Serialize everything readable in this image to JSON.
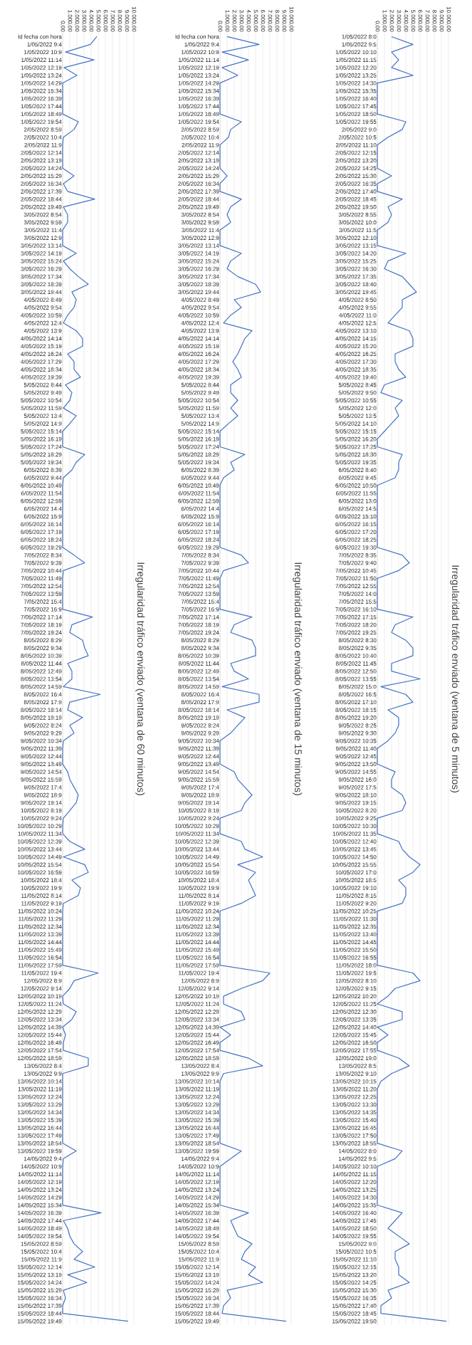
{
  "chart_data": [
    {
      "type": "line",
      "orientation": "horizontal",
      "title": "Irregularidad tráfico enviado (ventana de 60 minutos)",
      "color": "#4472c4",
      "grid": "x",
      "marker": "none",
      "xlim": [
        0,
        10000
      ],
      "xticks": [
        {
          "value": 0,
          "label": "0,00"
        },
        {
          "value": 1000,
          "label": "1.000,00"
        },
        {
          "value": 2000,
          "label": "2.000,00"
        },
        {
          "value": 3000,
          "label": "3.000,00"
        },
        {
          "value": 4000,
          "label": "4.000,00"
        },
        {
          "value": 5000,
          "label": "5.000,00"
        },
        {
          "value": 6000,
          "label": "6.000,00"
        },
        {
          "value": 7000,
          "label": "7.000,00"
        },
        {
          "value": 8000,
          "label": "8.000,00"
        },
        {
          "value": 9000,
          "label": "9.000,00"
        },
        {
          "value": 10000,
          "label": "10.000,00"
        }
      ],
      "categories": [
        "Id fecha con hora",
        "1/05/2022 9:4",
        "1/05/2022 10:9",
        "1/05/2022 11:14",
        "1/05/2022 12:19",
        "1/05/2022 13:24",
        "1/05/2022 14:29",
        "1/05/2022 15:34",
        "1/05/2022 16:39",
        "1/05/2022 17:44",
        "1/05/2022 18:49",
        "1/05/2022 19:54",
        "2/05/2022 8:59",
        "2/05/2022 10:4",
        "2/05/2022 11:9",
        "2/05/2022 12:14",
        "2/05/2022 13:19",
        "2/05/2022 14:24",
        "2/05/2022 15:29",
        "2/05/2022 16:34",
        "2/05/2022 17:39",
        "2/05/2022 18:44",
        "2/05/2022 19:49",
        "3/05/2022 8:54",
        "3/05/2022 9:59",
        "3/05/2022 11:4",
        "3/05/2022 12:9",
        "3/05/2022 13:14",
        "3/05/2022 14:19",
        "3/05/2022 15:24",
        "3/05/2022 16:29",
        "3/05/2022 17:34",
        "3/05/2022 18:39",
        "3/05/2022 19:44",
        "4/05/2022 8:49",
        "4/05/2022 9:54",
        "4/05/2022 10:59",
        "4/05/2022 12:4",
        "4/05/2022 13:9",
        "4/05/2022 14:14",
        "4/05/2022 15:19",
        "4/05/2022 16:24",
        "4/05/2022 17:29",
        "4/05/2022 18:34",
        "4/05/2022 19:39",
        "5/05/2022 8:44",
        "5/05/2022 9:49",
        "5/05/2022 10:54",
        "5/05/2022 11:59",
        "5/05/2022 13:4",
        "5/05/2022 14:9",
        "5/05/2022 15:14",
        "5/05/2022 16:19",
        "5/05/2022 17:24",
        "5/05/2022 18:29",
        "5/05/2022 19:34",
        "6/05/2022 8:39",
        "6/05/2022 9:44",
        "6/05/2022 10:49",
        "6/05/2022 11:54",
        "6/05/2022 12:59",
        "6/05/2022 14:4",
        "6/05/2022 15:9",
        "6/05/2022 16:14",
        "6/05/2022 17:19",
        "6/05/2022 18:24",
        "6/05/2022 19:29",
        "7/05/2022 8:34",
        "7/05/2022 9:39",
        "7/05/2022 10:44",
        "7/05/2022 11:49",
        "7/05/2022 12:54",
        "7/05/2022 13:59",
        "7/05/2022 15:4",
        "7/05/2022 16:9",
        "7/05/2022 17:14",
        "7/05/2022 18:19",
        "7/05/2022 19:24",
        "8/05/2022 8:29",
        "8/05/2022 9:34",
        "8/05/2022 10:39",
        "8/05/2022 11:44",
        "8/05/2022 12:49",
        "8/05/2022 13:54",
        "8/05/2022 14:59",
        "8/05/2022 16:4",
        "8/05/2022 17:9",
        "8/05/2022 18:14",
        "8/05/2022 19:19",
        "9/05/2022 8:24",
        "9/05/2022 9:29",
        "9/05/2022 10:34",
        "9/05/2022 11:39",
        "9/05/2022 12:44",
        "9/05/2022 13:49",
        "9/05/2022 14:54",
        "9/05/2022 15:59",
        "9/05/2022 17:4",
        "9/05/2022 18:9",
        "9/05/2022 19:14",
        "10/05/2022 8:19",
        "10/05/2022 9:24",
        "10/05/2022 10:29",
        "10/05/2022 11:34",
        "10/05/2022 12:39",
        "10/05/2022 13:44",
        "10/05/2022 14:49",
        "10/05/2022 15:54",
        "10/05/2022 16:59",
        "10/05/2022 18:4",
        "10/05/2022 19:9",
        "11/05/2022 8:14",
        "11/05/2022 9:19",
        "11/05/2022 10:24",
        "11/05/2022 11:29",
        "11/05/2022 12:34",
        "11/05/2022 13:39",
        "11/05/2022 14:44",
        "11/05/2022 15:49",
        "11/05/2022 16:54",
        "11/05/2022 17:59",
        "11/05/2022 19:4",
        "12/05/2022 8:9",
        "12/05/2022 9:14",
        "12/05/2022 10:19",
        "12/05/2022 11:24",
        "12/05/2022 12:29",
        "12/05/2022 13:34",
        "12/05/2022 14:39",
        "12/05/2022 15:44",
        "12/05/2022 16:49",
        "12/05/2022 17:54",
        "12/05/2022 18:59",
        "13/05/2022 8:4",
        "13/05/2022 9:9",
        "13/05/2022 10:14",
        "13/05/2022 11:19",
        "13/05/2022 12:24",
        "13/05/2022 13:29",
        "13/05/2022 14:34",
        "13/05/2022 15:39",
        "13/05/2022 16:44",
        "13/05/2022 17:49",
        "13/05/2022 18:54",
        "13/05/2022 19:59",
        "14/05/2022 9:4",
        "14/05/2022 10:9",
        "14/05/2022 11:14",
        "14/05/2022 12:19",
        "14/05/2022 13:24",
        "14/05/2022 14:29",
        "14/05/2022 15:34",
        "14/05/2022 16:39",
        "14/05/2022 17:44",
        "14/05/2022 18:49",
        "14/05/2022 19:54",
        "15/05/2022 8:59",
        "15/05/2022 10:4",
        "15/05/2022 11:9",
        "15/05/2022 12:14",
        "15/05/2022 13:19",
        "15/05/2022 14:24",
        "15/05/2022 15:29",
        "15/05/2022 16:34",
        "15/05/2022 17:39",
        "15/05/2022 18:44",
        "15/05/2022 19:49"
      ],
      "values": [
        4800,
        3900,
        400,
        4400,
        200,
        2000,
        0,
        0,
        0,
        0,
        0,
        2200,
        1600,
        100,
        0,
        0,
        0,
        0,
        1600,
        100,
        700,
        4500,
        100,
        700,
        700,
        0,
        0,
        0,
        1900,
        100,
        1000,
        2200,
        3600,
        1300,
        1900,
        1600,
        700,
        100,
        1900,
        2800,
        2800,
        700,
        1600,
        1600,
        2500,
        400,
        1300,
        1000,
        100,
        1900,
        1000,
        0,
        0,
        0,
        3100,
        1900,
        1300,
        100,
        0,
        0,
        0,
        0,
        0,
        0,
        0,
        0,
        0,
        1600,
        3100,
        100,
        0,
        0,
        0,
        0,
        0,
        4200,
        1300,
        1000,
        2800,
        3100,
        3600,
        700,
        1300,
        1300,
        100,
        5300,
        1000,
        700,
        2800,
        1000,
        1600,
        100,
        0,
        0,
        0,
        700,
        1000,
        1600,
        2200,
        1900,
        1000,
        100,
        0,
        0,
        1000,
        3100,
        100,
        3100,
        3600,
        1300,
        2500,
        2200,
        100,
        0,
        0,
        0,
        0,
        0,
        0,
        0,
        0,
        5000,
        1600,
        1000,
        0,
        100,
        1900,
        1300,
        0,
        400,
        100,
        100,
        3600,
        3600,
        0,
        0,
        0,
        0,
        0,
        0,
        0,
        0,
        0,
        0,
        1900,
        100,
        0,
        0,
        0,
        0,
        0,
        0,
        5400,
        100,
        700,
        1000,
        1600,
        2800,
        1600,
        4500,
        700,
        3400,
        100,
        400,
        0,
        0,
        9200
      ]
    },
    {
      "type": "line",
      "orientation": "horizontal",
      "title": "Irregularidad tráfico enviado (ventana de 15 minutos)",
      "color": "#4472c4",
      "grid": "x",
      "marker": "none",
      "xlim": [
        0,
        10000
      ],
      "xticks": [
        {
          "value": 0,
          "label": "0,00"
        },
        {
          "value": 1000,
          "label": "1.000,00"
        },
        {
          "value": 2000,
          "label": "2.000,00"
        },
        {
          "value": 3000,
          "label": "3.000,00"
        },
        {
          "value": 4000,
          "label": "4.000,00"
        },
        {
          "value": 5000,
          "label": "5.000,00"
        },
        {
          "value": 6000,
          "label": "6.000,00"
        },
        {
          "value": 7000,
          "label": "7.000,00"
        },
        {
          "value": 8000,
          "label": "8.000,00"
        },
        {
          "value": 9000,
          "label": "9.000,00"
        },
        {
          "value": 10000,
          "label": "10.000,00"
        }
      ],
      "categories": [
        "Id fecha con hora",
        "1/05/2022 9:4",
        "1/05/2022 10:9",
        "1/05/2022 11:14",
        "1/05/2022 12:19",
        "1/05/2022 13:24",
        "1/05/2022 14:29",
        "1/05/2022 15:34",
        "1/05/2022 16:39",
        "1/05/2022 17:44",
        "1/05/2022 18:49",
        "1/05/2022 19:54",
        "2/05/2022 8:59",
        "2/05/2022 10:4",
        "2/05/2022 11:9",
        "2/05/2022 12:14",
        "2/05/2022 13:19",
        "2/05/2022 14:24",
        "2/05/2022 15:29",
        "2/05/2022 16:34",
        "2/05/2022 17:39",
        "2/05/2022 18:44",
        "2/05/2022 19:49",
        "3/05/2022 8:54",
        "3/05/2022 9:59",
        "3/05/2022 11:4",
        "3/05/2022 12:9",
        "3/05/2022 13:14",
        "3/05/2022 14:19",
        "3/05/2022 15:24",
        "3/05/2022 16:29",
        "3/05/2022 17:34",
        "3/05/2022 18:39",
        "3/05/2022 19:44",
        "4/05/2022 8:49",
        "4/05/2022 9:54",
        "4/05/2022 10:59",
        "4/05/2022 12:4",
        "4/05/2022 13:9",
        "4/05/2022 14:14",
        "4/05/2022 15:19",
        "4/05/2022 16:24",
        "4/05/2022 17:29",
        "4/05/2022 18:34",
        "4/05/2022 19:39",
        "5/05/2022 8:44",
        "5/05/2022 9:49",
        "5/05/2022 10:54",
        "5/05/2022 11:59",
        "5/05/2022 13:4",
        "5/05/2022 14:9",
        "5/05/2022 15:14",
        "5/05/2022 16:19",
        "5/05/2022 17:24",
        "5/05/2022 18:29",
        "5/05/2022 19:34",
        "6/05/2022 8:39",
        "6/05/2022 9:44",
        "6/05/2022 10:49",
        "6/05/2022 11:54",
        "6/05/2022 12:59",
        "6/05/2022 14:4",
        "6/05/2022 15:9",
        "6/05/2022 16:14",
        "6/05/2022 17:19",
        "6/05/2022 18:24",
        "6/05/2022 19:29",
        "7/05/2022 8:34",
        "7/05/2022 9:39",
        "7/05/2022 10:44",
        "7/05/2022 11:49",
        "7/05/2022 12:54",
        "7/05/2022 13:59",
        "7/05/2022 15:4",
        "7/05/2022 16:9",
        "7/05/2022 17:14",
        "7/05/2022 18:19",
        "7/05/2022 19:24",
        "8/05/2022 8:29",
        "8/05/2022 9:34",
        "8/05/2022 10:39",
        "8/05/2022 11:44",
        "8/05/2022 12:49",
        "8/05/2022 13:54",
        "8/05/2022 14:59",
        "8/05/2022 16:4",
        "8/05/2022 17:9",
        "8/05/2022 18:14",
        "8/05/2022 19:19",
        "9/05/2022 8:24",
        "9/05/2022 9:29",
        "9/05/2022 10:34",
        "9/05/2022 11:39",
        "9/05/2022 12:44",
        "9/05/2022 13:49",
        "9/05/2022 14:54",
        "9/05/2022 15:59",
        "9/05/2022 17:4",
        "9/05/2022 18:9",
        "9/05/2022 19:14",
        "10/05/2022 8:19",
        "10/05/2022 9:24",
        "10/05/2022 10:29",
        "10/05/2022 11:34",
        "10/05/2022 12:39",
        "10/05/2022 13:44",
        "10/05/2022 14:49",
        "10/05/2022 15:54",
        "10/05/2022 16:59",
        "10/05/2022 18:4",
        "10/05/2022 19:9",
        "11/05/2022 8:14",
        "11/05/2022 9:19",
        "11/05/2022 10:24",
        "11/05/2022 11:29",
        "11/05/2022 12:34",
        "11/05/2022 13:39",
        "11/05/2022 14:44",
        "11/05/2022 15:49",
        "11/05/2022 16:54",
        "11/05/2022 17:59",
        "11/05/2022 19:4",
        "12/05/2022 8:9",
        "12/05/2022 9:14",
        "12/05/2022 10:19",
        "12/05/2022 11:24",
        "12/05/2022 12:29",
        "12/05/2022 13:34",
        "12/05/2022 14:39",
        "12/05/2022 15:44",
        "12/05/2022 16:49",
        "12/05/2022 17:54",
        "12/05/2022 18:59",
        "13/05/2022 8:4",
        "13/05/2022 9:9",
        "13/05/2022 10:14",
        "13/05/2022 11:19",
        "13/05/2022 12:24",
        "13/05/2022 13:29",
        "13/05/2022 14:34",
        "13/05/2022 15:39",
        "13/05/2022 16:44",
        "13/05/2022 17:49",
        "13/05/2022 18:54",
        "13/05/2022 19:59",
        "14/05/2022 9:4",
        "14/05/2022 10:9",
        "14/05/2022 11:14",
        "14/05/2022 12:19",
        "14/05/2022 13:24",
        "14/05/2022 14:29",
        "14/05/2022 15:34",
        "14/05/2022 16:39",
        "14/05/2022 17:44",
        "14/05/2022 18:49",
        "14/05/2022 19:54",
        "15/05/2022 8:59",
        "15/05/2022 10:4",
        "15/05/2022 11:9",
        "15/05/2022 12:14",
        "15/05/2022 13:19",
        "15/05/2022 14:24",
        "15/05/2022 15:29",
        "15/05/2022 16:34",
        "15/05/2022 17:39",
        "15/05/2022 18:44",
        "15/05/2022 19:49"
      ],
      "values": [
        1000,
        5500,
        300,
        4000,
        300,
        2500,
        0,
        0,
        0,
        0,
        0,
        3000,
        1500,
        1200,
        0,
        0,
        0,
        0,
        1000,
        0,
        0,
        3000,
        1500,
        1000,
        1500,
        0,
        0,
        0,
        3000,
        1500,
        1000,
        2500,
        5000,
        5700,
        2000,
        3000,
        1500,
        500,
        4500,
        3500,
        3000,
        2500,
        1800,
        2500,
        3000,
        1500,
        1500,
        2500,
        1500,
        2500,
        1200,
        0,
        0,
        0,
        3500,
        1500,
        2000,
        500,
        0,
        0,
        0,
        0,
        0,
        0,
        0,
        0,
        0,
        3000,
        4000,
        500,
        0,
        0,
        0,
        0,
        0,
        4500,
        2000,
        1500,
        4500,
        5000,
        5000,
        1500,
        2000,
        4000,
        300,
        5500,
        5500,
        1000,
        3500,
        2500,
        1500,
        0,
        0,
        0,
        0,
        2000,
        2500,
        3500,
        4500,
        3500,
        3000,
        0,
        0,
        0,
        3000,
        3500,
        6000,
        2500,
        5000,
        4000,
        4500,
        5000,
        3000,
        0,
        0,
        0,
        0,
        0,
        0,
        0,
        0,
        7000,
        6000,
        3000,
        500,
        500,
        3000,
        3500,
        0,
        1500,
        0,
        0,
        4000,
        6000,
        500,
        0,
        0,
        0,
        0,
        0,
        0,
        0,
        0,
        0,
        3000,
        1500,
        0,
        0,
        0,
        0,
        0,
        0,
        4000,
        1500,
        2000,
        2500,
        4500,
        3500,
        3000,
        5000,
        4000,
        6000,
        1000,
        1500,
        500,
        300,
        9300
      ]
    },
    {
      "type": "line",
      "orientation": "horizontal",
      "title": "Irregularidad tráfico enviado (ventana de 5 minutos)",
      "color": "#4472c4",
      "grid": "x",
      "marker": "none",
      "xlim": [
        0,
        10000
      ],
      "xticks": [
        {
          "value": 0,
          "label": "0,00"
        },
        {
          "value": 1000,
          "label": "1.000,00"
        },
        {
          "value": 2000,
          "label": "2.000,00"
        },
        {
          "value": 3000,
          "label": "3.000,00"
        },
        {
          "value": 4000,
          "label": "4.000,00"
        },
        {
          "value": 5000,
          "label": "5.000,00"
        },
        {
          "value": 6000,
          "label": "6.000,00"
        },
        {
          "value": 7000,
          "label": "7.000,00"
        },
        {
          "value": 8000,
          "label": "8.000,00"
        },
        {
          "value": 9000,
          "label": "9.000,00"
        },
        {
          "value": 10000,
          "label": "10.000,00"
        }
      ],
      "categories": [
        "1/05/2022 8:0",
        "1/05/2022 9:5",
        "1/05/2022 10:10",
        "1/05/2022 11:15",
        "1/05/2022 12:20",
        "1/05/2022 13:25",
        "1/05/2022 14:30",
        "1/05/2022 15:35",
        "1/05/2022 16:40",
        "1/05/2022 17:45",
        "1/05/2022 18:50",
        "1/05/2022 19:55",
        "2/05/2022 9:0",
        "2/05/2022 10:5",
        "2/05/2022 11:10",
        "2/05/2022 12:15",
        "2/05/2022 13:20",
        "2/05/2022 14:25",
        "2/05/2022 15:30",
        "2/05/2022 16:35",
        "2/05/2022 17:40",
        "2/05/2022 18:45",
        "2/05/2022 19:50",
        "3/05/2022 8:55",
        "3/05/2022 10:0",
        "3/05/2022 11:5",
        "3/05/2022 12:10",
        "3/05/2022 13:15",
        "3/05/2022 14:20",
        "3/05/2022 15:25",
        "3/05/2022 16:30",
        "3/05/2022 17:35",
        "3/05/2022 18:40",
        "3/05/2022 19:45",
        "4/05/2022 8:50",
        "4/05/2022 9:55",
        "4/05/2022 11:0",
        "4/05/2022 12:5",
        "4/05/2022 13:10",
        "4/05/2022 14:15",
        "4/05/2022 15:20",
        "4/05/2022 16:25",
        "4/05/2022 17:30",
        "4/05/2022 18:35",
        "4/05/2022 19:40",
        "5/05/2022 8:45",
        "5/05/2022 9:50",
        "5/05/2022 10:55",
        "5/05/2022 12:0",
        "5/05/2022 13:5",
        "5/05/2022 14:10",
        "5/05/2022 15:15",
        "5/05/2022 16:20",
        "5/05/2022 17:25",
        "5/05/2022 18:30",
        "5/05/2022 19:35",
        "6/05/2022 8:40",
        "6/05/2022 9:45",
        "6/05/2022 10:50",
        "6/05/2022 11:55",
        "6/05/2022 13:0",
        "6/05/2022 14:5",
        "6/05/2022 15:10",
        "6/05/2022 16:15",
        "6/05/2022 17:20",
        "6/05/2022 18:25",
        "6/05/2022 19:30",
        "7/05/2022 8:35",
        "7/05/2022 9:40",
        "7/05/2022 10:45",
        "7/05/2022 11:50",
        "7/05/2022 12:55",
        "7/05/2022 14:0",
        "7/05/2022 15:5",
        "7/05/2022 16:10",
        "7/05/2022 17:15",
        "7/05/2022 18:20",
        "7/05/2022 19:25",
        "8/05/2022 8:30",
        "8/05/2022 9:35",
        "8/05/2022 10:40",
        "8/05/2022 11:45",
        "8/05/2022 12:50",
        "8/05/2022 13:55",
        "8/05/2022 15:0",
        "8/05/2022 16:5",
        "8/05/2022 17:10",
        "8/05/2022 18:15",
        "8/05/2022 19:20",
        "9/05/2022 8:25",
        "9/05/2022 9:30",
        "9/05/2022 10:35",
        "9/05/2022 11:40",
        "9/05/2022 12:45",
        "9/05/2022 13:50",
        "9/05/2022 14:55",
        "9/05/2022 16:0",
        "9/05/2022 17:5",
        "9/05/2022 18:10",
        "9/05/2022 19:15",
        "10/05/2022 8:20",
        "10/05/2022 9:25",
        "10/05/2022 10:30",
        "10/05/2022 11:35",
        "10/05/2022 12:40",
        "10/05/2022 13:45",
        "10/05/2022 14:50",
        "10/05/2022 15:55",
        "10/05/2022 17:0",
        "10/05/2022 18:5",
        "10/05/2022 19:10",
        "11/05/2022 8:15",
        "11/05/2022 9:20",
        "11/05/2022 10:25",
        "11/05/2022 11:30",
        "11/05/2022 12:35",
        "11/05/2022 13:40",
        "11/05/2022 14:45",
        "11/05/2022 15:50",
        "11/05/2022 16:55",
        "11/05/2022 18:0",
        "11/05/2022 19:5",
        "12/05/2022 8:10",
        "12/05/2022 9:15",
        "12/05/2022 10:20",
        "12/05/2022 11:25",
        "12/05/2022 12:30",
        "12/05/2022 13:35",
        "12/05/2022 14:40",
        "12/05/2022 15:45",
        "12/05/2022 16:50",
        "12/05/2022 17:55",
        "12/05/2022 19:0",
        "13/05/2022 8:5",
        "13/05/2022 9:10",
        "13/05/2022 10:15",
        "13/05/2022 11:20",
        "13/05/2022 12:25",
        "13/05/2022 13:30",
        "13/05/2022 14:35",
        "13/05/2022 15:40",
        "13/05/2022 16:45",
        "13/05/2022 17:50",
        "13/05/2022 18:55",
        "14/05/2022 8:0",
        "14/05/2022 9:5",
        "14/05/2022 10:10",
        "14/05/2022 11:15",
        "14/05/2022 12:20",
        "14/05/2022 13:25",
        "14/05/2022 14:30",
        "14/05/2022 15:35",
        "14/05/2022 16:40",
        "14/05/2022 17:45",
        "14/05/2022 18:50",
        "14/05/2022 19:55",
        "15/05/2022 9:0",
        "15/05/2022 10:5",
        "15/05/2022 11:10",
        "15/05/2022 12:15",
        "15/05/2022 13:20",
        "15/05/2022 14:25",
        "15/05/2022 15:30",
        "15/05/2022 16:35",
        "15/05/2022 17:40",
        "15/05/2022 18:45",
        "15/05/2022 19:50"
      ],
      "values": [
        2000,
        5000,
        2000,
        3000,
        2000,
        5000,
        0,
        0,
        0,
        0,
        0,
        4000,
        3500,
        1500,
        0,
        0,
        0,
        0,
        2000,
        0,
        0,
        3500,
        1500,
        2000,
        1500,
        0,
        0,
        0,
        4000,
        1500,
        1000,
        3500,
        4500,
        5500,
        3500,
        3500,
        2500,
        1500,
        4500,
        5000,
        5000,
        2500,
        2500,
        3000,
        4000,
        1000,
        500,
        3500,
        2500,
        3000,
        2000,
        1000,
        0,
        0,
        3500,
        3000,
        3000,
        2500,
        0,
        0,
        0,
        0,
        0,
        0,
        0,
        0,
        0,
        3500,
        4500,
        3000,
        0,
        0,
        0,
        0,
        0,
        5000,
        2500,
        2000,
        4000,
        5000,
        5000,
        2000,
        2000,
        6000,
        500,
        4000,
        5000,
        1500,
        3000,
        3000,
        2500,
        1500,
        0,
        0,
        0,
        2500,
        2000,
        2000,
        3500,
        4000,
        3500,
        0,
        0,
        0,
        3000,
        3500,
        4500,
        6000,
        5000,
        3000,
        4000,
        4000,
        3500,
        0,
        0,
        0,
        0,
        0,
        0,
        0,
        0,
        5000,
        6000,
        2500,
        1500,
        0,
        3500,
        3500,
        0,
        1500,
        0,
        0,
        3000,
        4500,
        2000,
        500,
        0,
        0,
        0,
        0,
        0,
        0,
        0,
        0,
        3500,
        2500,
        0,
        0,
        0,
        0,
        0,
        0,
        3500,
        2500,
        1500,
        3000,
        4500,
        2500,
        2500,
        3000,
        3000,
        4500,
        1500,
        2000,
        500,
        500,
        9700
      ]
    }
  ]
}
